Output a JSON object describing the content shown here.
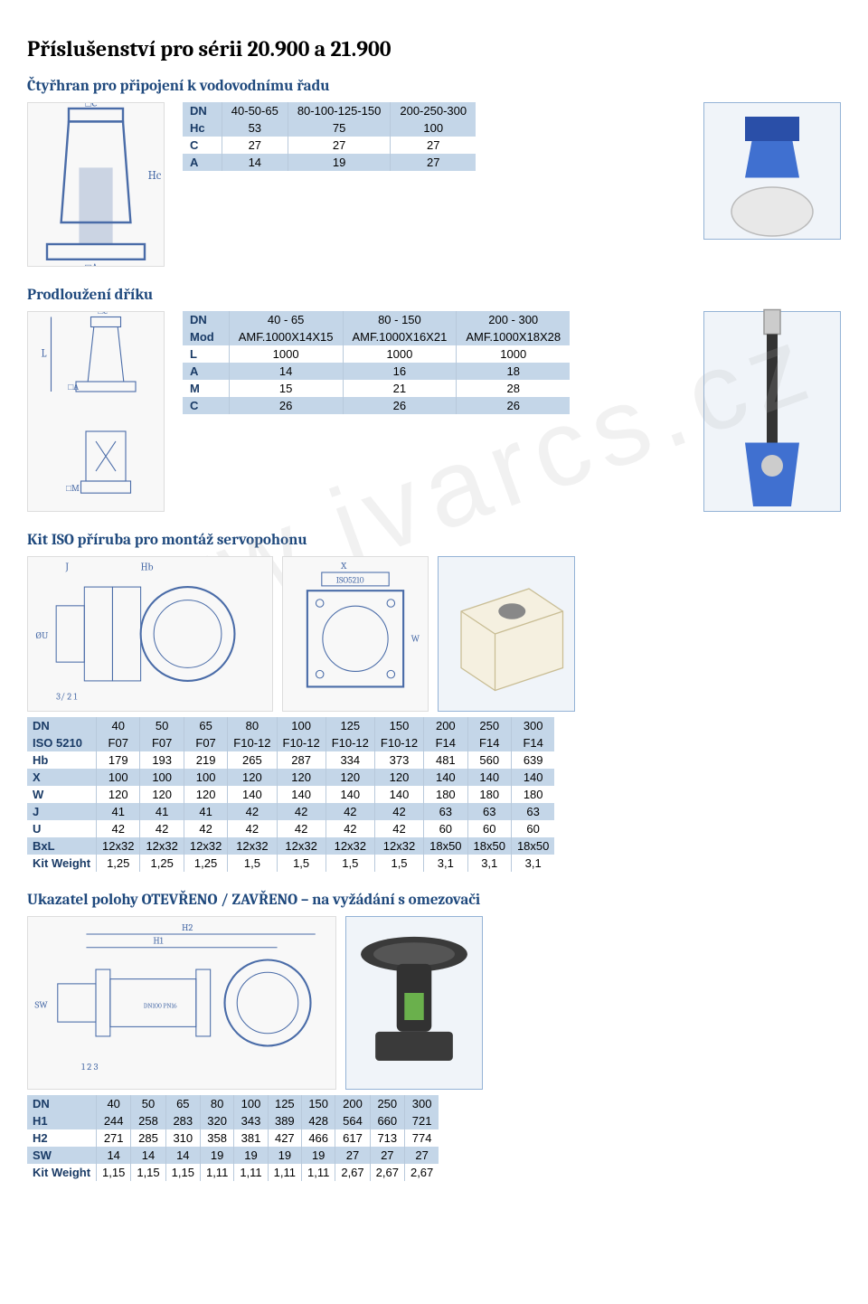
{
  "page_title": "Příslušenství pro sérii 20.900 a 21.900",
  "watermark": "www.ivarcs.cz",
  "sections": {
    "ctyrhran": {
      "title": "Čtyřhran pro připojení k vodovodnímu řadu",
      "table": {
        "header": [
          "DN",
          "40-50-65",
          "80-100-125-150",
          "200-250-300"
        ],
        "rows": [
          [
            "Hc",
            "53",
            "75",
            "100"
          ],
          [
            "C",
            "27",
            "27",
            "27"
          ],
          [
            "A",
            "14",
            "19",
            "27"
          ]
        ],
        "band_rows": [
          0,
          2
        ]
      },
      "colors": {
        "band": "#c4d6e8",
        "text": "#1a3b66"
      }
    },
    "prodlouzeni": {
      "title": "Prodloužení dříku",
      "table": {
        "header": [
          "DN",
          "40 - 65",
          "80 - 150",
          "200 - 300"
        ],
        "rows": [
          [
            "Mod",
            "AMF.1000X14X15",
            "AMF.1000X16X21",
            "AMF.1000X18X28"
          ],
          [
            "L",
            "1000",
            "1000",
            "1000"
          ],
          [
            "A",
            "14",
            "16",
            "18"
          ],
          [
            "M",
            "15",
            "21",
            "28"
          ],
          [
            "C",
            "26",
            "26",
            "26"
          ]
        ],
        "band_rows": [
          0,
          2,
          4
        ]
      }
    },
    "kit_iso": {
      "title": "Kit ISO příruba pro montáž servopohonu",
      "diagram_labels": {
        "J": "J",
        "Hb": "Hb",
        "X": "X",
        "ISO5210": "ISO5210",
        "W": "W",
        "U": "ØU",
        "3": "3",
        "2": "2",
        "1": "1"
      },
      "table": {
        "header": [
          "DN",
          "40",
          "50",
          "65",
          "80",
          "100",
          "125",
          "150",
          "200",
          "250",
          "300"
        ],
        "rows": [
          [
            "ISO 5210",
            "F07",
            "F07",
            "F07",
            "F10-12",
            "F10-12",
            "F10-12",
            "F10-12",
            "F14",
            "F14",
            "F14"
          ],
          [
            "Hb",
            "179",
            "193",
            "219",
            "265",
            "287",
            "334",
            "373",
            "481",
            "560",
            "639"
          ],
          [
            "X",
            "100",
            "100",
            "100",
            "120",
            "120",
            "120",
            "120",
            "140",
            "140",
            "140"
          ],
          [
            "W",
            "120",
            "120",
            "120",
            "140",
            "140",
            "140",
            "140",
            "180",
            "180",
            "180"
          ],
          [
            "J",
            "41",
            "41",
            "41",
            "42",
            "42",
            "42",
            "42",
            "63",
            "63",
            "63"
          ],
          [
            "U",
            "42",
            "42",
            "42",
            "42",
            "42",
            "42",
            "42",
            "60",
            "60",
            "60"
          ],
          [
            "BxL",
            "12x32",
            "12x32",
            "12x32",
            "12x32",
            "12x32",
            "12x32",
            "12x32",
            "18x50",
            "18x50",
            "18x50"
          ],
          [
            "Kit Weight",
            "1,25",
            "1,25",
            "1,25",
            "1,5",
            "1,5",
            "1,5",
            "1,5",
            "3,1",
            "3,1",
            "3,1"
          ]
        ],
        "band_rows": [
          0,
          2,
          4,
          6
        ]
      }
    },
    "ukazatel": {
      "title": "Ukazatel polohy OTEVŘENO / ZAVŘENO – na vyžádání s omezovači",
      "diagram_labels": {
        "H1": "H1",
        "H2": "H2",
        "SW": "SW",
        "1": "1",
        "2": "2",
        "3": "3"
      },
      "table": {
        "header": [
          "DN",
          "40",
          "50",
          "65",
          "80",
          "100",
          "125",
          "150",
          "200",
          "250",
          "300"
        ],
        "rows": [
          [
            "H1",
            "244",
            "258",
            "283",
            "320",
            "343",
            "389",
            "428",
            "564",
            "660",
            "721"
          ],
          [
            "H2",
            "271",
            "285",
            "310",
            "358",
            "381",
            "427",
            "466",
            "617",
            "713",
            "774"
          ],
          [
            "SW",
            "14",
            "14",
            "14",
            "19",
            "19",
            "19",
            "19",
            "27",
            "27",
            "27"
          ],
          [
            "Kit Weight",
            "1,15",
            "1,15",
            "1,15",
            "1,11",
            "1,11",
            "1,11",
            "1,11",
            "2,67",
            "2,67",
            "2,67"
          ]
        ],
        "band_rows": [
          0,
          2
        ]
      }
    }
  }
}
